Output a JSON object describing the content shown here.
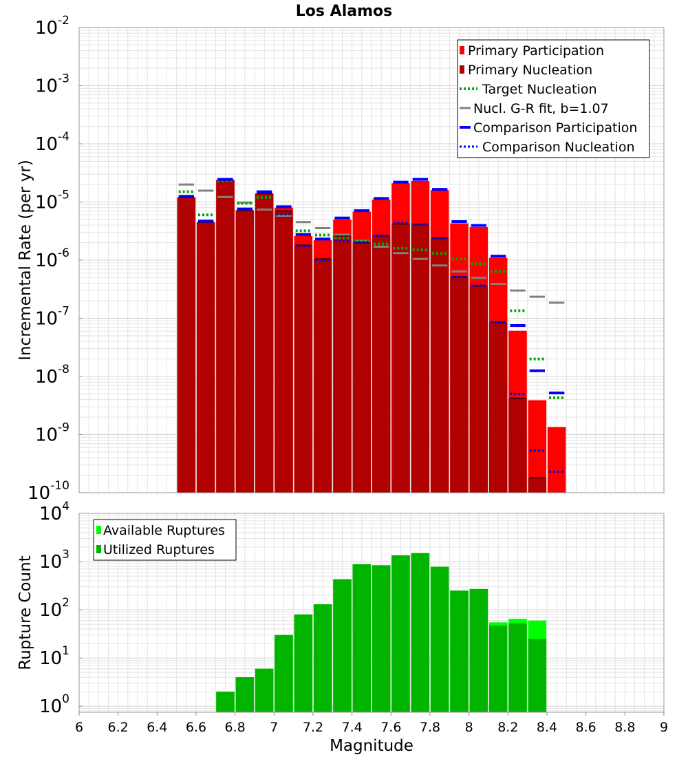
{
  "title": "Los Alamos",
  "colors": {
    "participation": "#ff0000",
    "nucleation": "#b00000",
    "target": "#00aa00",
    "gr_fit": "#808080",
    "comparison": "#0000ff",
    "nucl_tick": "#3a0000",
    "available": "#00ff00",
    "utilized": "#00b400",
    "grid": "#e3e3e3"
  },
  "chart_data": [
    {
      "type": "bar",
      "title": "Los Alamos",
      "xlabel": "",
      "ylabel": "Incremental Rate (per yr)",
      "xlim": [
        6,
        9
      ],
      "ylim": [
        1e-10,
        0.01
      ],
      "yscale": "log",
      "yticks": [
        {
          "value": 0.01,
          "base": "10",
          "exp": "-2"
        },
        {
          "value": 0.001,
          "base": "10",
          "exp": "-3"
        },
        {
          "value": 0.0001,
          "base": "10",
          "exp": "-4"
        },
        {
          "value": 1e-05,
          "base": "10",
          "exp": "-5"
        },
        {
          "value": 1e-06,
          "base": "10",
          "exp": "-6"
        },
        {
          "value": 1e-07,
          "base": "10",
          "exp": "-7"
        },
        {
          "value": 1e-08,
          "base": "10",
          "exp": "-8"
        },
        {
          "value": 1e-09,
          "base": "10",
          "exp": "-9"
        },
        {
          "value": 1e-10,
          "base": "10",
          "exp": "-10"
        }
      ],
      "grid": true,
      "legend_position": "top-right",
      "legend": [
        {
          "label": "Primary Participation",
          "style": "bar-participation"
        },
        {
          "label": "Primary Nucleation",
          "style": "bar-nucleation"
        },
        {
          "label": "Target Nucleation",
          "style": "dotted-target"
        },
        {
          "label": "Nucl. G-R fit, b=1.07",
          "style": "solid-gr"
        },
        {
          "label": "Comparison Participation",
          "style": "solid-comparison"
        },
        {
          "label": "Comparison Nucleation",
          "style": "dotted-comparison"
        }
      ],
      "bin_width": 0.1,
      "x": [
        6.55,
        6.65,
        6.75,
        6.85,
        6.95,
        7.05,
        7.15,
        7.25,
        7.35,
        7.45,
        7.55,
        7.65,
        7.75,
        7.85,
        7.95,
        8.05,
        8.15,
        8.25,
        8.35,
        8.45
      ],
      "series": [
        {
          "name": "Primary Participation",
          "kind": "bar",
          "values": [
            1.2e-05,
            4.5e-06,
            2.4e-05,
            7.2e-06,
            1.4e-05,
            8e-06,
            2.6e-06,
            2.2e-06,
            5e-06,
            6.8e-06,
            1.1e-05,
            2.1e-05,
            2.3e-05,
            1.6e-05,
            4.3e-06,
            3.7e-06,
            1.1e-06,
            6.1e-08,
            3.9e-09,
            1.35e-09
          ]
        },
        {
          "name": "Primary Nucleation",
          "kind": "bar",
          "values": [
            1.2e-05,
            4.5e-06,
            2.4e-05,
            7.2e-06,
            1.4e-05,
            7e-06,
            1.8e-06,
            1.05e-06,
            2.6e-06,
            2e-06,
            2.6e-06,
            4.2e-06,
            4.1e-06,
            2.4e-06,
            5.2e-07,
            3.6e-07,
            8.5e-08,
            4.2e-09,
            1.8e-10,
            null
          ]
        },
        {
          "name": "Target Nucleation",
          "kind": "dotted",
          "values": [
            1.5e-05,
            6e-06,
            2.3e-05,
            9.5e-06,
            1.2e-05,
            6.1e-06,
            3.2e-06,
            2.7e-06,
            2.4e-06,
            2.1e-06,
            1.9e-06,
            1.6e-06,
            1.5e-06,
            1.3e-06,
            1.05e-06,
            8.6e-07,
            6.4e-07,
            1.35e-07,
            2e-08,
            4.3e-09
          ]
        },
        {
          "name": "Nucl. G-R fit, b=1.07",
          "kind": "solid",
          "values": [
            2e-05,
            1.57e-05,
            1.22e-05,
            9.8e-06,
            7.4e-06,
            5.8e-06,
            4.5e-06,
            3.55e-06,
            2.75e-06,
            2.15e-06,
            1.7e-06,
            1.32e-06,
            1.05e-06,
            8.1e-07,
            6.4e-07,
            4.95e-07,
            3.9e-07,
            3e-07,
            2.35e-07,
            1.85e-07
          ]
        },
        {
          "name": "Comparison Participation",
          "kind": "solid",
          "values": [
            1.25e-05,
            4.7e-06,
            2.45e-05,
            7.6e-06,
            1.5e-05,
            8.3e-06,
            2.75e-06,
            2.3e-06,
            5.3e-06,
            7.1e-06,
            1.15e-05,
            2.2e-05,
            2.45e-05,
            1.65e-05,
            4.6e-06,
            3.95e-06,
            1.17e-06,
            7.5e-08,
            1.25e-08,
            5.2e-09
          ]
        },
        {
          "name": "Comparison Nucleation",
          "kind": "dotted",
          "values": [
            1.25e-05,
            4.7e-06,
            2.45e-05,
            7.6e-06,
            1.5e-05,
            6.2e-06,
            1.75e-06,
            1e-06,
            2.15e-06,
            2.05e-06,
            2.65e-06,
            4.4e-06,
            4.1e-06,
            2.35e-06,
            5.1e-07,
            3.65e-07,
            8.6e-08,
            5e-09,
            5.3e-10,
            2.3e-10
          ]
        }
      ]
    },
    {
      "type": "bar",
      "title": "",
      "xlabel": "Magnitude",
      "ylabel": "Rupture Count",
      "xlim": [
        6,
        9
      ],
      "ylim": [
        0.75,
        10000
      ],
      "yscale": "log",
      "yticks": [
        {
          "value": 1,
          "base": "10",
          "exp": "0"
        },
        {
          "value": 10,
          "base": "10",
          "exp": "1"
        },
        {
          "value": 100,
          "base": "10",
          "exp": "2"
        },
        {
          "value": 1000,
          "base": "10",
          "exp": "3"
        },
        {
          "value": 10000,
          "base": "10",
          "exp": "4"
        }
      ],
      "xticks": [
        "6",
        "6.2",
        "6.4",
        "6.6",
        "6.8",
        "7",
        "7.2",
        "7.4",
        "7.6",
        "7.8",
        "8",
        "8.2",
        "8.4",
        "8.6",
        "8.8",
        "9"
      ],
      "grid": true,
      "legend_position": "top-left",
      "legend": [
        {
          "label": "Available Ruptures",
          "style": "bar-available"
        },
        {
          "label": "Utilized Ruptures",
          "style": "bar-utilized"
        }
      ],
      "bin_width": 0.1,
      "x": [
        6.75,
        6.85,
        6.95,
        7.05,
        7.15,
        7.25,
        7.35,
        7.45,
        7.55,
        7.65,
        7.75,
        7.85,
        7.95,
        8.05,
        8.15,
        8.25,
        8.35
      ],
      "series": [
        {
          "name": "Available Ruptures",
          "kind": "bar",
          "values": [
            2,
            4,
            6,
            30,
            80,
            130,
            430,
            880,
            840,
            1350,
            1500,
            780,
            250,
            270,
            55,
            65,
            60
          ]
        },
        {
          "name": "Utilized Ruptures",
          "kind": "bar",
          "values": [
            2,
            4,
            6,
            30,
            80,
            130,
            430,
            880,
            840,
            1350,
            1500,
            780,
            250,
            270,
            47,
            52,
            25
          ]
        }
      ]
    }
  ]
}
